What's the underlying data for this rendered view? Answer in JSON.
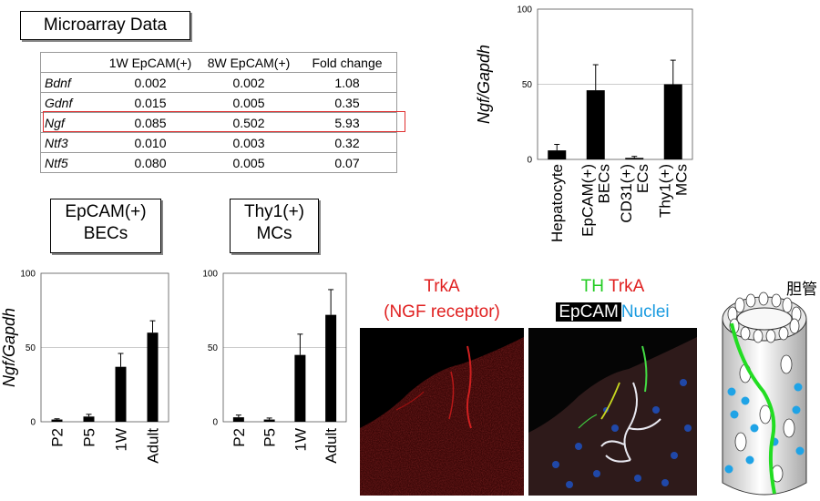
{
  "microarray": {
    "title": "Microarray Data",
    "headers": [
      "",
      "1W EpCAM(+)",
      "8W EpCAM(+)",
      "Fold change"
    ],
    "rows": [
      [
        "Bdnf",
        "0.002",
        "0.002",
        "1.08"
      ],
      [
        "Gdnf",
        "0.015",
        "0.005",
        "0.35"
      ],
      [
        "Ngf",
        "0.085",
        "0.502",
        "5.93"
      ],
      [
        "Ntf3",
        "0.010",
        "0.003",
        "0.32"
      ],
      [
        "Ntf5",
        "0.080",
        "0.005",
        "0.07"
      ]
    ],
    "highlight_color": "#e03030"
  },
  "labels": {
    "epcam_box": [
      "EpCAM(+)",
      "BECs"
    ],
    "thy1_box": [
      "Thy1(+)",
      "MCs"
    ],
    "trka_title": "TrkA",
    "trka_subtitle": "(NGF receptor)",
    "merge_th": "TH",
    "merge_trka": "TrkA",
    "merge_epcam": "EpCAM",
    "merge_nuclei": "Nuclei",
    "bile_duct": "胆管"
  },
  "colors": {
    "red_label": "#e02020",
    "green_label": "#22cc22",
    "blue_label": "#1a9be0",
    "bar": "#000000"
  },
  "chart_data": [
    {
      "type": "bar",
      "ylabel": "Ngf/Gapdh",
      "ylim": [
        0,
        100
      ],
      "yticks": [
        0,
        50,
        100
      ],
      "categories": [
        "Hepatocyte",
        "EpCAM(+)\nBECs",
        "CD31(+)\nECs",
        "Thy1(+)\nMCs"
      ],
      "values": [
        6,
        46,
        1,
        50
      ],
      "errors": [
        4,
        17,
        1,
        16
      ],
      "grid": true
    },
    {
      "type": "bar",
      "ylabel": "Ngf/Gapdh",
      "ylim": [
        0,
        100
      ],
      "yticks": [
        0,
        50,
        100
      ],
      "categories": [
        "P2",
        "P5",
        "1W",
        "Adult"
      ],
      "values": [
        1.5,
        3.5,
        37,
        60
      ],
      "errors": [
        0.5,
        1.5,
        9,
        8
      ],
      "grid": true
    },
    {
      "type": "bar",
      "ylabel": "",
      "ylim": [
        0,
        100
      ],
      "yticks": [
        0,
        50,
        100
      ],
      "categories": [
        "P2",
        "P5",
        "1W",
        "Adult"
      ],
      "values": [
        3,
        1.5,
        45,
        72
      ],
      "errors": [
        1.5,
        1,
        14,
        17
      ],
      "grid": true
    }
  ]
}
